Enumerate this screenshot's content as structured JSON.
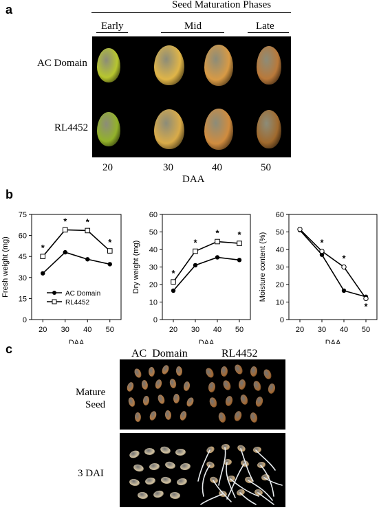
{
  "panel_a": {
    "letter": "a",
    "header": "Seed Maturation Phases",
    "phases": [
      "Early",
      "Mid",
      "Late"
    ],
    "row_labels": [
      "AC Domain",
      "RL4452"
    ],
    "columns": [
      "20",
      "30",
      "40",
      "50"
    ],
    "xlabel": "DAA",
    "seed_colors": {
      "ac": [
        "#b7c62f",
        "#e0b548",
        "#d89a45",
        "#b9793a"
      ],
      "rl": [
        "#93b22a",
        "#d9ab49",
        "#d08c3f",
        "#a06a2e"
      ]
    }
  },
  "panel_b": {
    "letter": "b"
  },
  "panel_c": {
    "letter": "c",
    "col_labels": [
      "AC  Domain",
      "RL4452"
    ],
    "row_labels": [
      [
        "Mature",
        "Seed"
      ],
      [
        "3 DAI"
      ]
    ]
  },
  "chart_data": [
    {
      "type": "line",
      "ylabel": "Fresh weight (mg)",
      "xlabel": "DAA",
      "x": [
        20,
        30,
        40,
        50
      ],
      "xlim": [
        15,
        55
      ],
      "ylim": [
        0,
        75
      ],
      "yticks": [
        0,
        15,
        30,
        45,
        60,
        75
      ],
      "series": [
        {
          "name": "AC Domain",
          "marker": "filled",
          "values": [
            33,
            48,
            43,
            39.5
          ]
        },
        {
          "name": "RL4452",
          "marker": "open-square",
          "values": [
            45,
            64,
            63.5,
            49
          ]
        }
      ],
      "significance": [
        "*",
        "*",
        "*",
        "*"
      ],
      "legend": "bottom-right"
    },
    {
      "type": "line",
      "ylabel": "Dry weight (mg)",
      "xlabel": "DAA",
      "x": [
        20,
        30,
        40,
        50
      ],
      "xlim": [
        15,
        55
      ],
      "ylim": [
        0,
        60
      ],
      "yticks": [
        0,
        10,
        20,
        30,
        40,
        50,
        60
      ],
      "series": [
        {
          "name": "AC Domain",
          "marker": "filled",
          "values": [
            16.5,
            31,
            35.5,
            34
          ]
        },
        {
          "name": "RL4452",
          "marker": "open-square",
          "values": [
            21.5,
            39,
            44.5,
            43.5
          ]
        }
      ],
      "significance": [
        "*",
        "*",
        "*",
        "*"
      ]
    },
    {
      "type": "line",
      "ylabel": "Moisture content (%)",
      "xlabel": "DAA",
      "x": [
        20,
        30,
        40,
        50
      ],
      "xlim": [
        15,
        55
      ],
      "ylim": [
        0,
        60
      ],
      "yticks": [
        0,
        10,
        20,
        30,
        40,
        50,
        60
      ],
      "series": [
        {
          "name": "AC Domain",
          "marker": "filled",
          "values": [
            51,
            37,
            16.5,
            13
          ]
        },
        {
          "name": "RL4452",
          "marker": "open-circle",
          "values": [
            51.5,
            39,
            30,
            12
          ]
        }
      ],
      "significance": [
        "",
        "*",
        "*",
        "*"
      ]
    }
  ]
}
